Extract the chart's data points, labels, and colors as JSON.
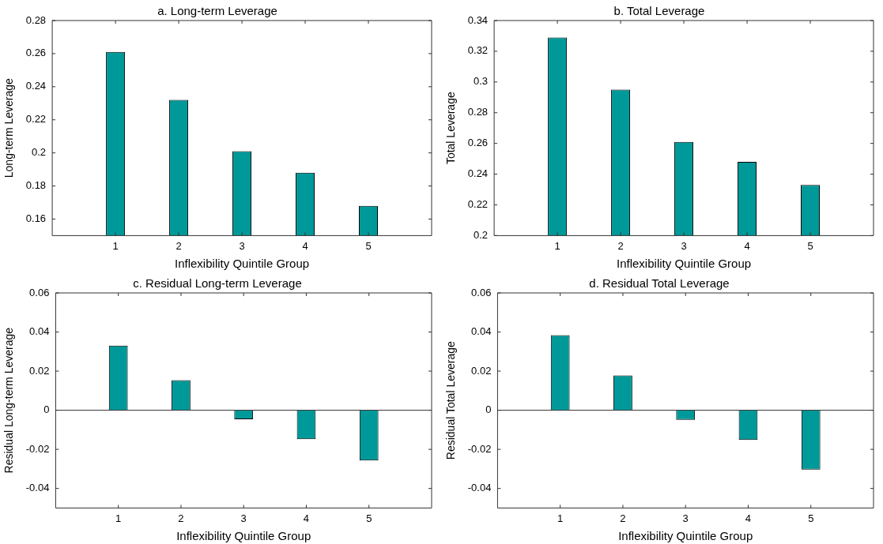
{
  "chart_data": [
    {
      "type": "bar",
      "title": "a. Long-term Leverage",
      "xlabel": "Inflexibility Quintile Group",
      "ylabel": "Long-term Leverage",
      "x": [
        1,
        2,
        3,
        4,
        5
      ],
      "xlim": [
        0,
        6
      ],
      "xticks": [
        1,
        2,
        3,
        4,
        5
      ],
      "ylim": [
        0.15,
        0.28
      ],
      "yticks": [
        0.16,
        0.18,
        0.2,
        0.22,
        0.24,
        0.26,
        0.28
      ],
      "color": "#009999",
      "values": [
        0.261,
        0.232,
        0.201,
        0.188,
        0.168
      ]
    },
    {
      "type": "bar",
      "title": "b. Total Leverage",
      "xlabel": "Inflexibility Quintile Group",
      "ylabel": "Total Leverage",
      "x": [
        1,
        2,
        3,
        4,
        5
      ],
      "xlim": [
        0,
        6
      ],
      "xticks": [
        1,
        2,
        3,
        4,
        5
      ],
      "ylim": [
        0.2,
        0.34
      ],
      "yticks": [
        0.2,
        0.22,
        0.24,
        0.26,
        0.28,
        0.3,
        0.32,
        0.34
      ],
      "color": "#009999",
      "values": [
        0.329,
        0.295,
        0.261,
        0.248,
        0.233
      ]
    },
    {
      "type": "bar",
      "title": "c. Residual Long-term Leverage",
      "xlabel": "Inflexibility Quintile Group",
      "ylabel": "Residual Long-term Leverage",
      "x": [
        1,
        2,
        3,
        4,
        5
      ],
      "xlim": [
        0,
        6
      ],
      "xticks": [
        1,
        2,
        3,
        4,
        5
      ],
      "ylim": [
        -0.05,
        0.06
      ],
      "yticks": [
        -0.04,
        -0.02,
        0,
        0.02,
        0.04,
        0.06
      ],
      "color": "#009999",
      "values": [
        0.033,
        0.0154,
        -0.0046,
        -0.0148,
        -0.0257
      ]
    },
    {
      "type": "bar",
      "title": "d. Residual Total Leverage",
      "xlabel": "Inflexibility Quintile Group",
      "ylabel": "Residual Total Leverage",
      "x": [
        1,
        2,
        3,
        4,
        5
      ],
      "xlim": [
        0,
        6
      ],
      "xticks": [
        1,
        2,
        3,
        4,
        5
      ],
      "ylim": [
        -0.05,
        0.06
      ],
      "yticks": [
        -0.04,
        -0.02,
        0,
        0.02,
        0.04,
        0.06
      ],
      "color": "#009999",
      "values": [
        0.0384,
        0.0178,
        -0.0049,
        -0.0152,
        -0.0304
      ]
    }
  ]
}
